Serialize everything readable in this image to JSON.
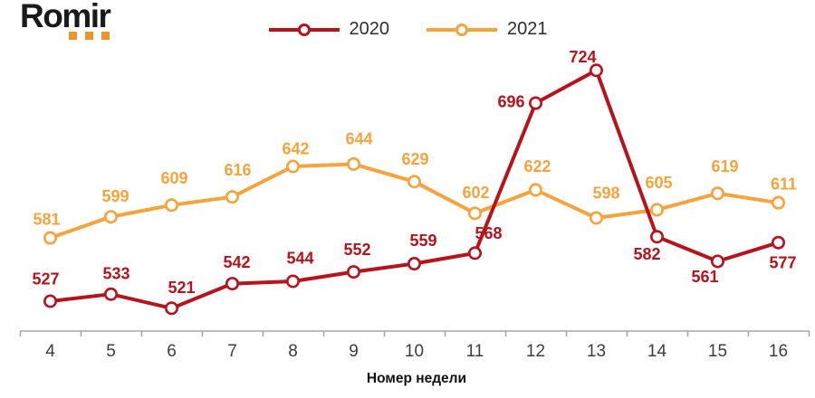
{
  "logo": {
    "text": "Romir"
  },
  "colors": {
    "series_2020": "#b9121b",
    "series_2021": "#f8a33a",
    "axis_line": "#a8a8a8",
    "tick_label": "#3d3d3d",
    "axis_title": "#111111",
    "legend_text": "#2e2e2e",
    "logo_text": "#1a1a1a",
    "logo_dots": "#ef9426",
    "marker_fill": "#ffffff"
  },
  "chart_data": {
    "type": "line",
    "title": "",
    "xlabel": "Номер недели",
    "ylabel": "",
    "categories": [
      "4",
      "5",
      "6",
      "7",
      "8",
      "9",
      "10",
      "11",
      "12",
      "13",
      "14",
      "15",
      "16"
    ],
    "series": [
      {
        "name": "2020",
        "color": "#b9121b",
        "values": [
          527,
          533,
          521,
          542,
          544,
          552,
          559,
          568,
          696,
          724,
          582,
          561,
          577
        ],
        "label_offsets": [
          [
            -5,
            -25
          ],
          [
            6,
            -23
          ],
          [
            11,
            -23
          ],
          [
            5,
            -24
          ],
          [
            8,
            -26
          ],
          [
            4,
            -25
          ],
          [
            10,
            -26
          ],
          [
            15,
            -22
          ],
          [
            -27,
            -2
          ],
          [
            -15,
            -15
          ],
          [
            -11,
            19
          ],
          [
            -14,
            17
          ],
          [
            5,
            22
          ]
        ]
      },
      {
        "name": "2021",
        "color": "#f8a33a",
        "values": [
          581,
          599,
          609,
          616,
          642,
          644,
          629,
          602,
          622,
          598,
          605,
          619,
          611
        ],
        "label_offsets": [
          [
            -4,
            -21
          ],
          [
            5,
            -23
          ],
          [
            3,
            -30
          ],
          [
            6,
            -30
          ],
          [
            3,
            -20
          ],
          [
            6,
            -28
          ],
          [
            1,
            -25
          ],
          [
            1,
            -23
          ],
          [
            2,
            -26
          ],
          [
            11,
            -28
          ],
          [
            2,
            -30
          ],
          [
            8,
            -30
          ],
          [
            6,
            -21
          ]
        ]
      }
    ],
    "ylim": [
      500,
      750
    ],
    "grid": false,
    "legend_position": "top",
    "data_labels": true,
    "marker": "circle-open"
  }
}
